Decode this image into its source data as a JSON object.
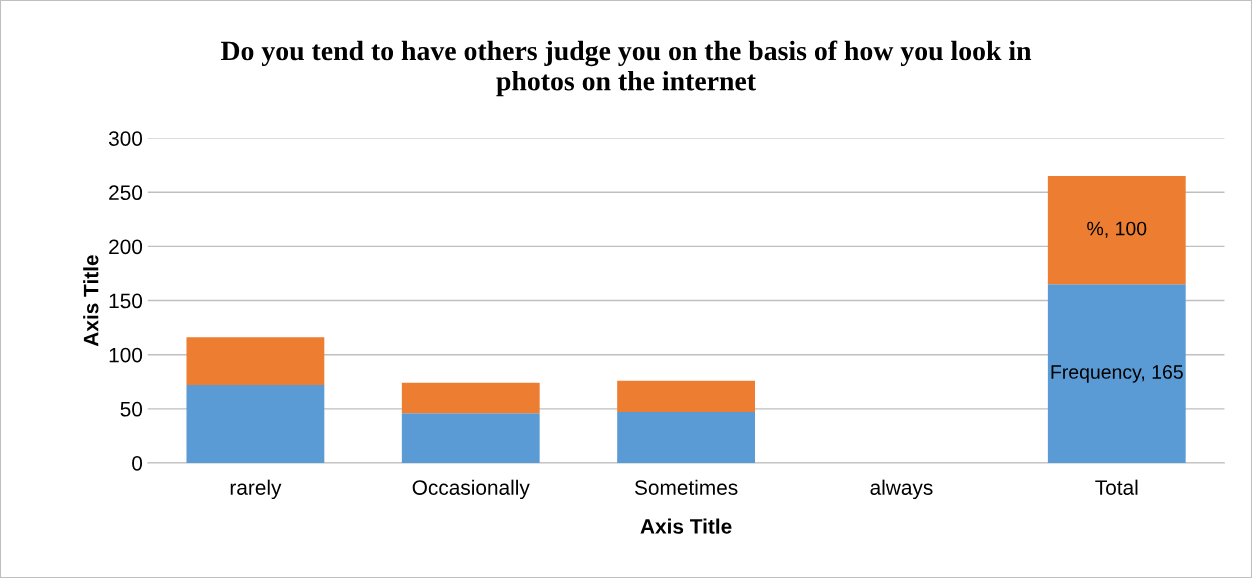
{
  "chart_data": {
    "type": "bar",
    "title": "Do you tend to have others judge you on the basis of how you look in\nphotos on the internet",
    "xlabel": "Axis Title",
    "ylabel": "Axis Title",
    "categories": [
      "rarely",
      "Occasionally",
      "Sometimes",
      "always",
      "Total"
    ],
    "stacked": true,
    "series": [
      {
        "color": "#5b9bd5",
        "values": [
          72,
          46,
          47,
          0,
          165
        ],
        "value_labels": [
          null,
          null,
          null,
          null,
          "Frequency, 165"
        ]
      },
      {
        "color": "#ed7d31",
        "values": [
          44,
          28,
          29,
          0,
          100
        ],
        "value_labels": [
          null,
          null,
          null,
          null,
          "%, 100"
        ]
      }
    ],
    "ylim": [
      0,
      300
    ],
    "yticks": [
      0,
      50,
      100,
      150,
      200,
      250,
      300
    ],
    "grid": "y",
    "legend": false
  }
}
